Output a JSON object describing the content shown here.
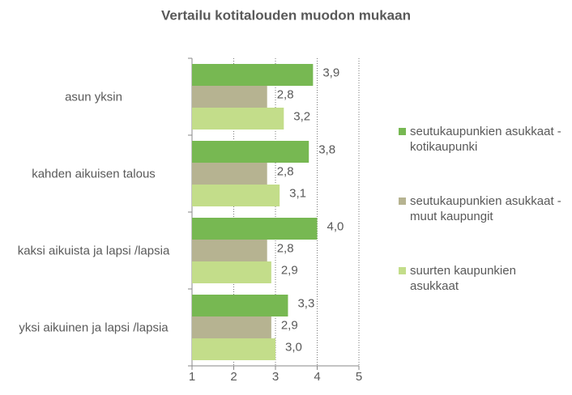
{
  "chart_data": {
    "type": "bar",
    "orientation": "horizontal",
    "title": "Vertailu kotitalouden muodon mukaan",
    "categories": [
      "asun yksin",
      "kahden aikuisen talous",
      "kaksi aikuista ja lapsi /lapsia",
      "yksi aikuinen ja lapsi /lapsia"
    ],
    "series": [
      {
        "name": "seutukaupunkien asukkaat - kotikaupunki",
        "color": "#77b852",
        "values": [
          3.9,
          3.8,
          4.0,
          3.3
        ],
        "value_labels": [
          "3,9",
          "3,8",
          "4,0",
          "3,3"
        ]
      },
      {
        "name": "seutukaupunkien asukkaat - muut kaupungit",
        "color": "#b6b391",
        "values": [
          2.8,
          2.8,
          2.8,
          2.9
        ],
        "value_labels": [
          "2,8",
          "2,8",
          "2,8",
          "2,9"
        ]
      },
      {
        "name": "suurten kaupunkien asukkaat",
        "color": "#c3dd8a",
        "values": [
          3.2,
          3.1,
          2.9,
          3.0
        ],
        "value_labels": [
          "3,2",
          "3,1",
          "2,9",
          "3,0"
        ]
      }
    ],
    "xlim": [
      1,
      5
    ],
    "xticks": [
      1,
      2,
      3,
      4,
      5
    ],
    "grid": true,
    "legend": "right"
  }
}
